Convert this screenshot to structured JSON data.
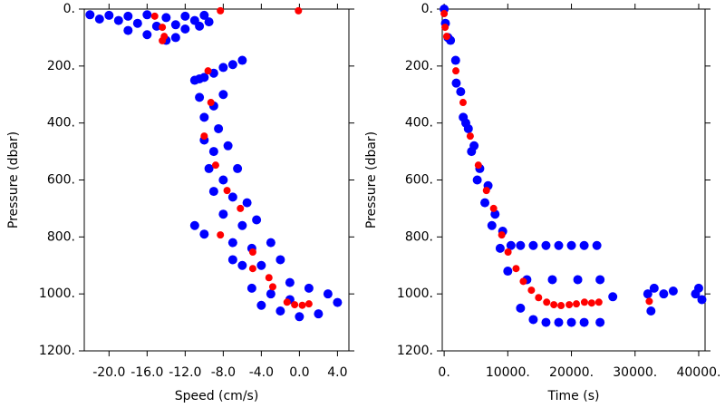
{
  "chart_data": [
    {
      "type": "scatter",
      "xlabel": "Speed (cm/s)",
      "ylabel": "Pressure (dbar)",
      "xlim": [
        -22.6,
        5.2
      ],
      "ylim": [
        1200,
        0
      ],
      "xticks": [
        {
          "value": -20,
          "label": "-20.0"
        },
        {
          "value": -16,
          "label": "-16.0"
        },
        {
          "value": -12,
          "label": "-12.0"
        },
        {
          "value": -8,
          "label": "-8.0"
        },
        {
          "value": -4,
          "label": "-4.0"
        },
        {
          "value": 0,
          "label": "0.0"
        },
        {
          "value": 4,
          "label": "4.0"
        }
      ],
      "yticks": [
        {
          "value": 0,
          "label": "0."
        },
        {
          "value": 200,
          "label": "200."
        },
        {
          "value": 400,
          "label": "400."
        },
        {
          "value": 600,
          "label": "600."
        },
        {
          "value": 800,
          "label": "800."
        },
        {
          "value": 1000,
          "label": "1000."
        },
        {
          "value": 1200,
          "label": "1200."
        }
      ],
      "series": [
        {
          "color": "#0000ff",
          "x": [
            -22,
            -20,
            -18,
            -16,
            -14,
            -12,
            -10,
            -9.5,
            -21,
            -19,
            -17,
            -15,
            -13,
            -11,
            -16,
            -18,
            -14,
            -12,
            -10.5,
            -13,
            -11,
            -10,
            -9,
            -8,
            -7,
            -6,
            -10.5,
            -10.5,
            -9,
            -8,
            -10,
            -8.5,
            -10,
            -9,
            -7.5,
            -9.5,
            -8,
            -6.5,
            -7,
            -9,
            -5.5,
            -8,
            -6,
            -4.5,
            -11,
            -7,
            -5,
            -3,
            -6,
            -4,
            -2,
            -5,
            -3,
            -1,
            1,
            3,
            -2,
            0,
            2,
            4,
            -4,
            -7,
            -10,
            -1
          ],
          "values": [
            20,
            22,
            25,
            20,
            30,
            25,
            22,
            45,
            35,
            40,
            50,
            60,
            55,
            40,
            90,
            75,
            110,
            70,
            60,
            100,
            250,
            240,
            225,
            205,
            195,
            180,
            245,
            310,
            340,
            300,
            380,
            420,
            460,
            500,
            480,
            560,
            600,
            560,
            660,
            640,
            680,
            720,
            760,
            740,
            760,
            820,
            840,
            820,
            900,
            900,
            880,
            980,
            1000,
            960,
            980,
            1000,
            1060,
            1080,
            1070,
            1030,
            1040,
            880,
            790,
            1020
          ]
        },
        {
          "color": "#ff0000",
          "x": [
            -15.2,
            -14.4,
            -14.2,
            -14.4,
            -8.3,
            -0.1,
            -9.6,
            -9.3,
            -10,
            -8.8,
            -7.6,
            -6.2,
            -8.3,
            -4.9,
            -4.9,
            -3.2,
            -2.8,
            -1.3,
            -0.5,
            0.3,
            1.0
          ],
          "values": [
            25,
            64,
            96,
            111,
            6,
            6,
            217,
            328,
            446,
            548,
            637,
            700,
            793,
            853,
            911,
            943,
            975,
            1029,
            1038,
            1040,
            1035
          ]
        }
      ]
    },
    {
      "type": "scatter",
      "xlabel": "Time (s)",
      "ylabel": "Pressure (dbar)",
      "xlim": [
        -300,
        41000
      ],
      "ylim": [
        1200,
        0
      ],
      "xticks": [
        {
          "value": 0,
          "label": "0."
        },
        {
          "value": 10000,
          "label": "10000."
        },
        {
          "value": 20000,
          "label": "20000."
        },
        {
          "value": 30000,
          "label": "30000."
        },
        {
          "value": 40000,
          "label": "40000."
        }
      ],
      "yticks": [
        {
          "value": 0,
          "label": "0."
        },
        {
          "value": 200,
          "label": "200."
        },
        {
          "value": 400,
          "label": "400."
        },
        {
          "value": 600,
          "label": "600."
        },
        {
          "value": 800,
          "label": "800."
        },
        {
          "value": 1000,
          "label": "1000."
        },
        {
          "value": 1200,
          "label": "1200."
        }
      ],
      "series": [
        {
          "color": "#0000ff",
          "x": [
            0,
            200,
            600,
            1000,
            1800,
            1900,
            2600,
            3000,
            3400,
            3800,
            4300,
            4700,
            5200,
            5600,
            6400,
            6900,
            7500,
            8000,
            8800,
            9200,
            10000,
            10500,
            12000,
            14000,
            16000,
            18000,
            20000,
            22000,
            24000,
            12000,
            14000,
            16000,
            18000,
            20000,
            22000,
            24500,
            13000,
            17000,
            21000,
            24500,
            26500,
            32000,
            32500,
            33000,
            34500,
            36000,
            40000,
            40500,
            39500
          ],
          "values": [
            0,
            50,
            100,
            110,
            180,
            260,
            290,
            380,
            400,
            420,
            500,
            480,
            600,
            560,
            680,
            620,
            760,
            720,
            840,
            780,
            920,
            830,
            830,
            830,
            830,
            830,
            830,
            830,
            830,
            1050,
            1090,
            1100,
            1100,
            1100,
            1100,
            1100,
            950,
            950,
            950,
            950,
            1010,
            1000,
            1060,
            980,
            1000,
            990,
            980,
            1020,
            1000
          ]
        },
        {
          "color": "#ff0000",
          "x": [
            0,
            140,
            400,
            1840,
            2970,
            4100,
            5370,
            6640,
            7770,
            9050,
            10040,
            11300,
            12440,
            13710,
            14840,
            16110,
            17240,
            18370,
            19650,
            20780,
            22050,
            23180,
            24310,
            32230
          ],
          "values": [
            16,
            64,
            96,
            217,
            328,
            446,
            548,
            637,
            700,
            793,
            853,
            911,
            956,
            987,
            1013,
            1029,
            1038,
            1041,
            1038,
            1035,
            1029,
            1032,
            1029,
            1026
          ]
        }
      ]
    }
  ]
}
